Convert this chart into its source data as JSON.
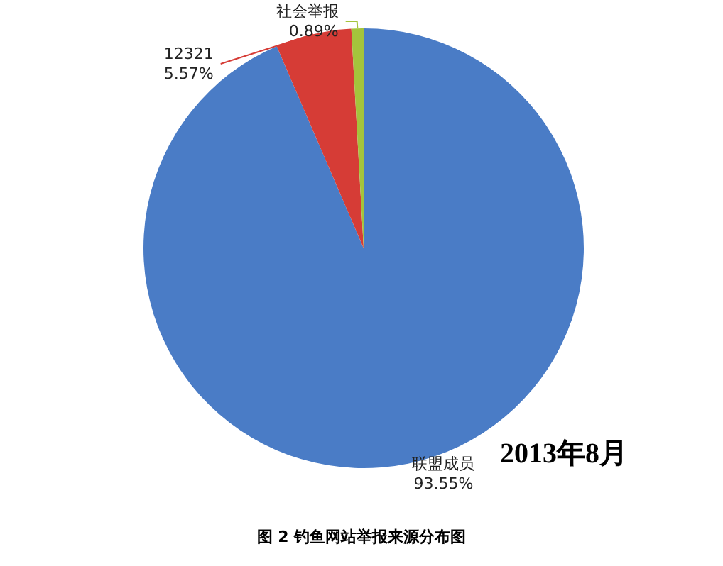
{
  "chart_data": {
    "type": "pie",
    "title": "图 2 钓鱼网站举报来源分布图",
    "categories": [
      "联盟成员",
      "12321",
      "社会举报"
    ],
    "values": [
      93.55,
      5.57,
      0.89
    ],
    "colors": [
      "#4a7cc6",
      "#d63c36",
      "#a4c43c"
    ],
    "value_labels": [
      "93.55%",
      "5.57%",
      "0.89%"
    ],
    "annotations": [
      "2013年8月"
    ]
  }
}
